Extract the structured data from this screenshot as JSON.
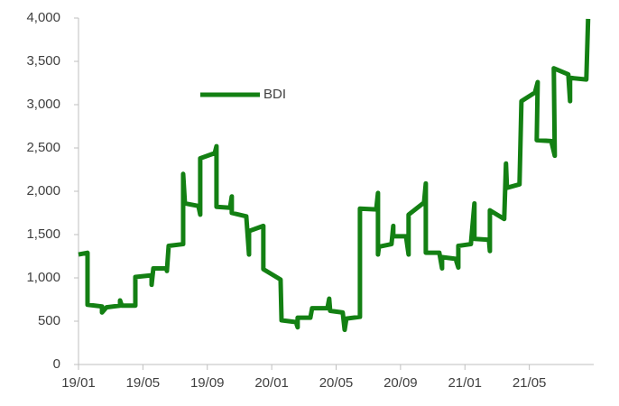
{
  "chart_data": {
    "type": "line",
    "series": [
      {
        "name": "BDI",
        "color": "#138013",
        "x": [
          0,
          0.56,
          0.56,
          1.46,
          1.46,
          1.74,
          2.58,
          2.58,
          2.69,
          3.53,
          3.53,
          4.54,
          4.54,
          4.65,
          5.49,
          5.49,
          5.6,
          6.5,
          6.5,
          6.61,
          7.45,
          7.56,
          7.56,
          8.46,
          8.57,
          8.57,
          9.41,
          9.52,
          9.52,
          10.42,
          10.59,
          10.59,
          11.48,
          11.48,
          12.55,
          12.61,
          13.5,
          13.61,
          13.61,
          14.4,
          14.51,
          15.46,
          15.57,
          15.63,
          16.41,
          16.53,
          16.64,
          17.48,
          17.48,
          18.49,
          18.6,
          18.6,
          18.66,
          19.44,
          19.55,
          19.55,
          20.34,
          20.5,
          20.5,
          21.46,
          21.57,
          21.57,
          22.41,
          22.58,
          22.58,
          23.42,
          23.59,
          23.59,
          24.37,
          24.59,
          24.59,
          25.49,
          25.55,
          25.55,
          26.44,
          26.55,
          26.61,
          27.39,
          27.51,
          28.35,
          28.52,
          28.46,
          29.36,
          29.58,
          29.52,
          30.42,
          30.53,
          30.53,
          31.54,
          31.65
        ],
        "values": [
          1270,
          1290,
          690,
          670,
          600,
          660,
          680,
          740,
          680,
          680,
          1010,
          1030,
          920,
          1110,
          1110,
          1080,
          1370,
          1390,
          2200,
          1860,
          1830,
          1730,
          2380,
          2440,
          2520,
          1820,
          1810,
          1940,
          1750,
          1710,
          1270,
          1540,
          1600,
          1100,
          980,
          510,
          490,
          430,
          540,
          540,
          650,
          650,
          760,
          620,
          600,
          400,
          530,
          550,
          1800,
          1790,
          1980,
          1270,
          1360,
          1390,
          1600,
          1480,
          1480,
          1270,
          1730,
          1870,
          2090,
          1290,
          1290,
          1110,
          1240,
          1220,
          1120,
          1370,
          1390,
          1860,
          1450,
          1440,
          1310,
          1780,
          1680,
          2320,
          2040,
          2080,
          3040,
          3140,
          3260,
          2590,
          2580,
          2410,
          3420,
          3350,
          3040,
          3310,
          3290,
          3990
        ]
      }
    ],
    "xlim": [
      0,
      32
    ],
    "xticks": [
      {
        "value": 0,
        "label": "19/01"
      },
      {
        "value": 4,
        "label": "19/05"
      },
      {
        "value": 8,
        "label": "19/09"
      },
      {
        "value": 12,
        "label": "20/01"
      },
      {
        "value": 16,
        "label": "20/05"
      },
      {
        "value": 20,
        "label": "20/09"
      },
      {
        "value": 24,
        "label": "21/01"
      },
      {
        "value": 28,
        "label": "21/05"
      }
    ],
    "ylim": [
      0,
      4000
    ],
    "yticks": [
      0,
      {
        "value": 500,
        "label": "500"
      },
      {
        "value": 1000,
        "label": "1,000"
      },
      {
        "value": 1500,
        "label": "1,500"
      },
      {
        "value": 2000,
        "label": "2,000"
      },
      {
        "value": 2500,
        "label": "2,500"
      },
      {
        "value": 3000,
        "label": "3,000"
      },
      {
        "value": 3500,
        "label": "3,500"
      },
      {
        "value": 4000,
        "label": "4,000"
      }
    ],
    "grid": false
  }
}
